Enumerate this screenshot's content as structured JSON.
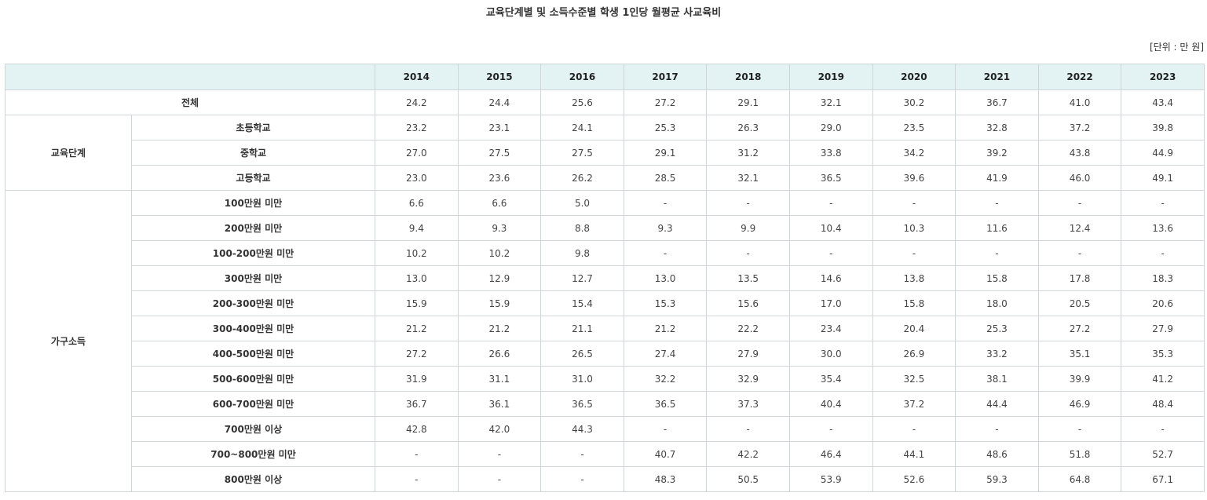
{
  "title": "교육단계별 및 소득수준별 학생 1인당 월평균 사교육비",
  "unit": "[단위 : 만 원]",
  "table": {
    "years": [
      "2014",
      "2015",
      "2016",
      "2017",
      "2018",
      "2019",
      "2020",
      "2021",
      "2022",
      "2023"
    ],
    "total": {
      "label": "전체",
      "values": [
        "24.2",
        "24.4",
        "25.6",
        "27.2",
        "29.1",
        "32.1",
        "30.2",
        "36.7",
        "41.0",
        "43.4"
      ]
    },
    "groups": [
      {
        "label": "교육단계",
        "rows": [
          {
            "label": "초등학교",
            "values": [
              "23.2",
              "23.1",
              "24.1",
              "25.3",
              "26.3",
              "29.0",
              "23.5",
              "32.8",
              "37.2",
              "39.8"
            ]
          },
          {
            "label": "중학교",
            "values": [
              "27.0",
              "27.5",
              "27.5",
              "29.1",
              "31.2",
              "33.8",
              "34.2",
              "39.2",
              "43.8",
              "44.9"
            ]
          },
          {
            "label": "고등학교",
            "values": [
              "23.0",
              "23.6",
              "26.2",
              "28.5",
              "32.1",
              "36.5",
              "39.6",
              "41.9",
              "46.0",
              "49.1"
            ]
          }
        ]
      },
      {
        "label": "가구소득",
        "rows": [
          {
            "label": "100만원 미만",
            "values": [
              "6.6",
              "6.6",
              "5.0",
              "-",
              "-",
              "-",
              "-",
              "-",
              "-",
              "-"
            ]
          },
          {
            "label": "200만원 미만",
            "values": [
              "9.4",
              "9.3",
              "8.8",
              "9.3",
              "9.9",
              "10.4",
              "10.3",
              "11.6",
              "12.4",
              "13.6"
            ]
          },
          {
            "label": "100-200만원 미만",
            "values": [
              "10.2",
              "10.2",
              "9.8",
              "-",
              "-",
              "-",
              "-",
              "-",
              "-",
              "-"
            ]
          },
          {
            "label": "300만원 미만",
            "values": [
              "13.0",
              "12.9",
              "12.7",
              "13.0",
              "13.5",
              "14.6",
              "13.8",
              "15.8",
              "17.8",
              "18.3"
            ]
          },
          {
            "label": "200-300만원 미만",
            "values": [
              "15.9",
              "15.9",
              "15.4",
              "15.3",
              "15.6",
              "17.0",
              "15.8",
              "18.0",
              "20.5",
              "20.6"
            ]
          },
          {
            "label": "300-400만원 미만",
            "values": [
              "21.2",
              "21.2",
              "21.1",
              "21.2",
              "22.2",
              "23.4",
              "20.4",
              "25.3",
              "27.2",
              "27.9"
            ]
          },
          {
            "label": "400-500만원 미만",
            "values": [
              "27.2",
              "26.6",
              "26.5",
              "27.4",
              "27.9",
              "30.0",
              "26.9",
              "33.2",
              "35.1",
              "35.3"
            ]
          },
          {
            "label": "500-600만원 미만",
            "values": [
              "31.9",
              "31.1",
              "31.0",
              "32.2",
              "32.9",
              "35.4",
              "32.5",
              "38.1",
              "39.9",
              "41.2"
            ]
          },
          {
            "label": "600-700만원 미만",
            "values": [
              "36.7",
              "36.1",
              "36.5",
              "36.5",
              "37.3",
              "40.4",
              "37.2",
              "44.4",
              "46.9",
              "48.4"
            ]
          },
          {
            "label": "700만원 이상",
            "values": [
              "42.8",
              "42.0",
              "44.3",
              "-",
              "-",
              "-",
              "-",
              "-",
              "-",
              "-"
            ]
          },
          {
            "label": "700~800만원 미만",
            "values": [
              "-",
              "-",
              "-",
              "40.7",
              "42.2",
              "46.4",
              "44.1",
              "48.6",
              "51.8",
              "52.7"
            ]
          },
          {
            "label": "800만원 이상",
            "values": [
              "-",
              "-",
              "-",
              "48.3",
              "50.5",
              "53.9",
              "52.6",
              "59.3",
              "64.8",
              "67.1"
            ]
          }
        ]
      }
    ]
  }
}
